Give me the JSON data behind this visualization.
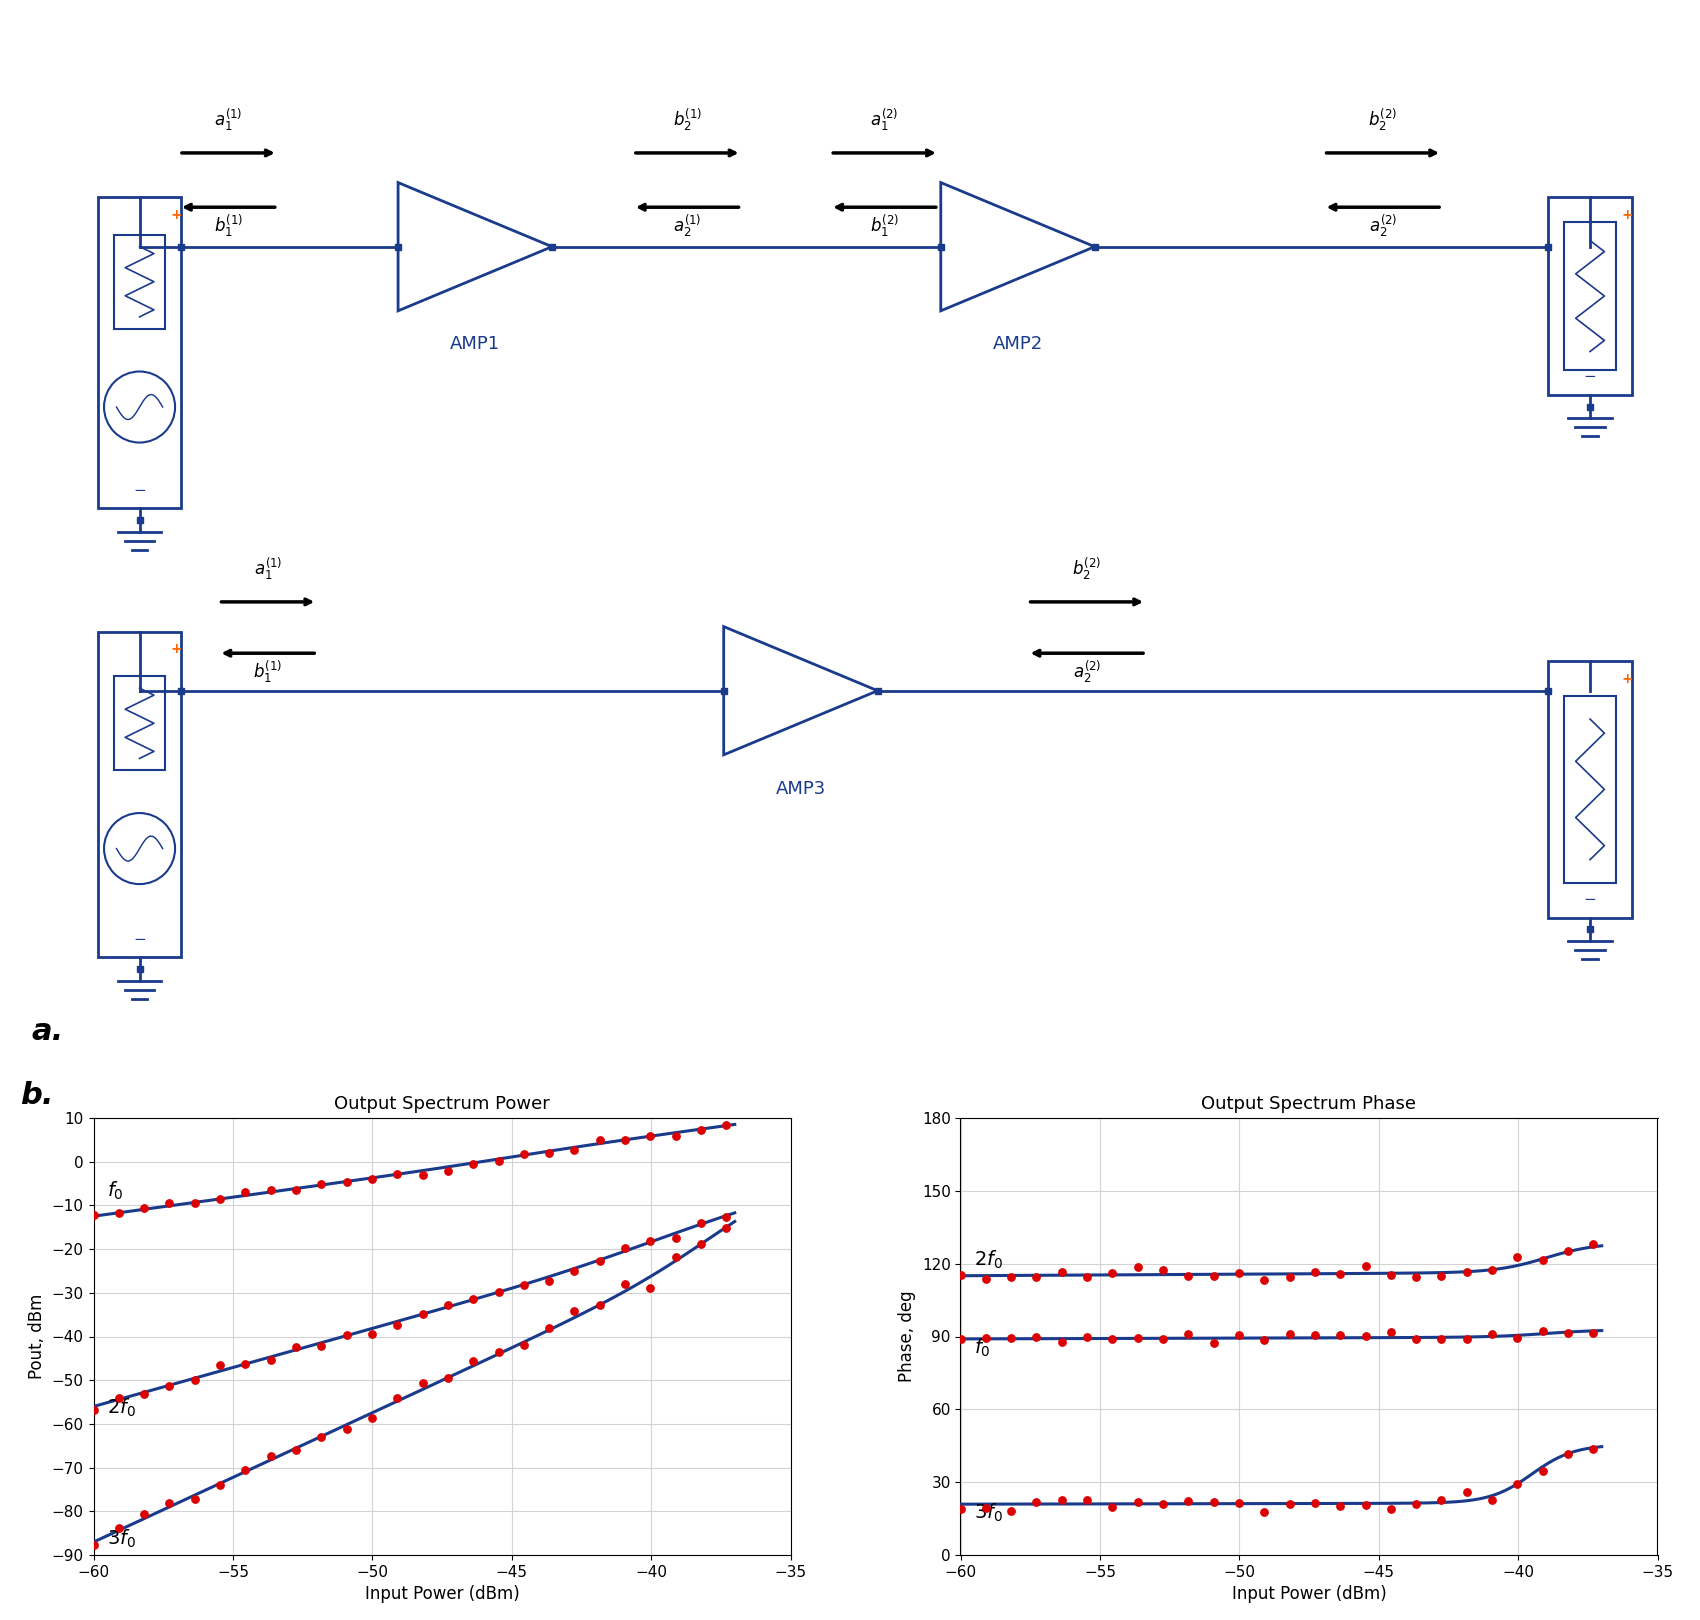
{
  "bg_color": "#ffffff",
  "circuit_color": "#1a3a8c",
  "arrow_color": "#000000",
  "orange_color": "#ff6600",
  "plot_line_color": "#1a3a8c",
  "plot_dot_color": "#dd0000",
  "plot1_title": "Output Spectrum Power",
  "plot2_title": "Output Spectrum Phase",
  "plot1_xlabel": "Input Power (dBm)",
  "plot2_xlabel": "Input Power (dBm)",
  "plot1_ylabel": "Pout, dBm",
  "plot2_ylabel": "Phase, deg",
  "plot1_xlim": [
    -60,
    -35
  ],
  "plot1_ylim": [
    -90,
    10
  ],
  "plot2_xlim": [
    -60,
    -35
  ],
  "plot2_ylim": [
    0,
    180
  ],
  "plot1_xticks": [
    -60,
    -55,
    -50,
    -45,
    -40,
    -35
  ],
  "plot1_yticks": [
    -90,
    -80,
    -70,
    -60,
    -50,
    -40,
    -30,
    -20,
    -10,
    0,
    10
  ],
  "plot2_xticks": [
    -60,
    -55,
    -50,
    -45,
    -40,
    -35
  ],
  "plot2_yticks": [
    0,
    30,
    60,
    90,
    120,
    150,
    180
  ]
}
